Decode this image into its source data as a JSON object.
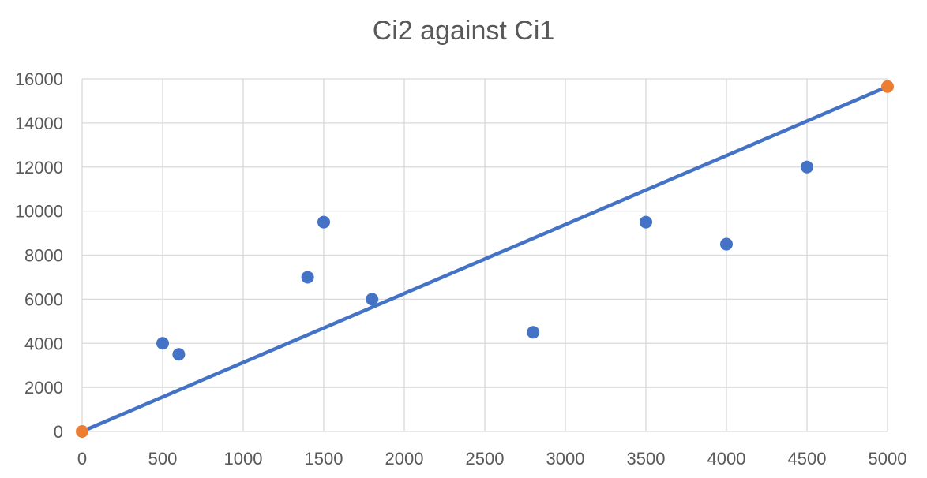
{
  "chart_data": {
    "type": "scatter",
    "title": "Ci2 against Ci1",
    "xlabel": "",
    "ylabel": "",
    "xlim": [
      0,
      5000
    ],
    "ylim": [
      0,
      16000
    ],
    "x_ticks": [
      0,
      500,
      1000,
      1500,
      2000,
      2500,
      3000,
      3500,
      4000,
      4500,
      5000
    ],
    "y_ticks": [
      0,
      2000,
      4000,
      6000,
      8000,
      10000,
      12000,
      14000,
      16000
    ],
    "grid": true,
    "legend": "none",
    "series": [
      {
        "kind": "scatter",
        "color": "#4472C4",
        "points": [
          {
            "x": 500,
            "y": 4000
          },
          {
            "x": 600,
            "y": 3500
          },
          {
            "x": 1400,
            "y": 7000
          },
          {
            "x": 1500,
            "y": 9500
          },
          {
            "x": 1800,
            "y": 6000
          },
          {
            "x": 2800,
            "y": 4500
          },
          {
            "x": 3500,
            "y": 9500
          },
          {
            "x": 4000,
            "y": 8500
          },
          {
            "x": 4500,
            "y": 12000
          }
        ]
      },
      {
        "kind": "line",
        "color": "#4472C4",
        "points": [
          {
            "x": 0,
            "y": 0
          },
          {
            "x": 5000,
            "y": 15650
          }
        ]
      },
      {
        "kind": "scatter",
        "color": "#ED7D31",
        "points": [
          {
            "x": 0,
            "y": 0
          },
          {
            "x": 5000,
            "y": 15650
          }
        ]
      }
    ]
  }
}
